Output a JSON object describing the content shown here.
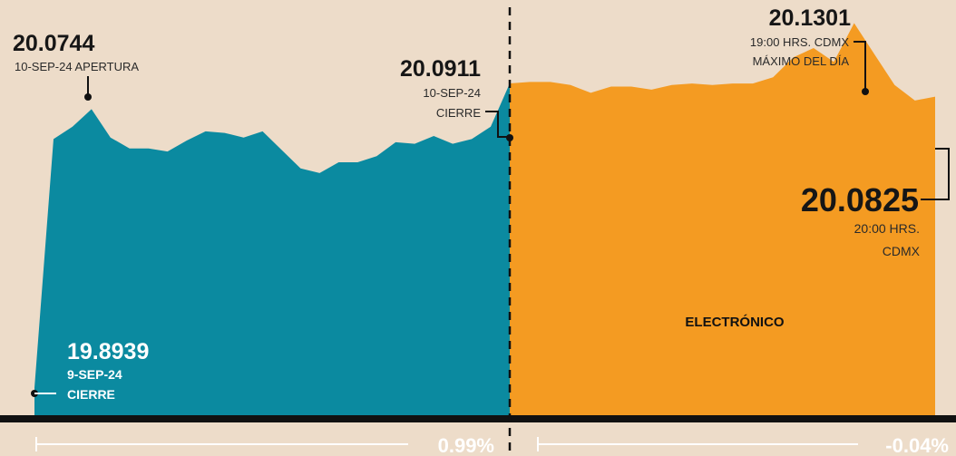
{
  "chart_data": {
    "type": "area",
    "y_unit": "MXN per USD",
    "series": [
      {
        "name": "",
        "color": "#0b8aa0",
        "values": [
          19.8939,
          20.055,
          20.063,
          20.0744,
          20.056,
          20.049,
          20.049,
          20.047,
          20.054,
          20.06,
          20.059,
          20.056,
          20.06,
          20.048,
          20.036,
          20.033,
          20.04,
          20.04,
          20.044,
          20.053,
          20.052,
          20.057,
          20.052,
          20.055,
          20.063,
          20.0911
        ]
      },
      {
        "name": "",
        "color": "#f49b22",
        "values": [
          20.0911,
          20.092,
          20.092,
          20.09,
          20.085,
          20.089,
          20.089,
          20.087,
          20.09,
          20.091,
          20.09,
          20.091,
          20.091,
          20.095,
          20.108,
          20.114,
          20.105,
          20.1301,
          20.11,
          20.09,
          20.08,
          20.0825
        ]
      }
    ],
    "ylim": [
      19.875,
      20.1451
    ],
    "annotations": {
      "open": {
        "value": "20.0744",
        "date": "10-SEP-24 APERTURA"
      },
      "close_prev": {
        "value": "19.8939",
        "date": "9-SEP-24",
        "note": "CIERRE"
      },
      "close_day": {
        "value": "20.0911",
        "date": "10-SEP-24",
        "note": "CIERRE"
      },
      "max": {
        "value": "20.1301",
        "time": "19:00 HRS. CDMX",
        "note": "MÁXIMO DEL DÍA"
      },
      "last": {
        "value": "20.0825",
        "time": "20:00 HRS.",
        "note": "CDMX"
      },
      "section_label": "ELECTRÓNICO"
    },
    "changes": {
      "left": "0.99%",
      "right": "-0.04%"
    }
  }
}
